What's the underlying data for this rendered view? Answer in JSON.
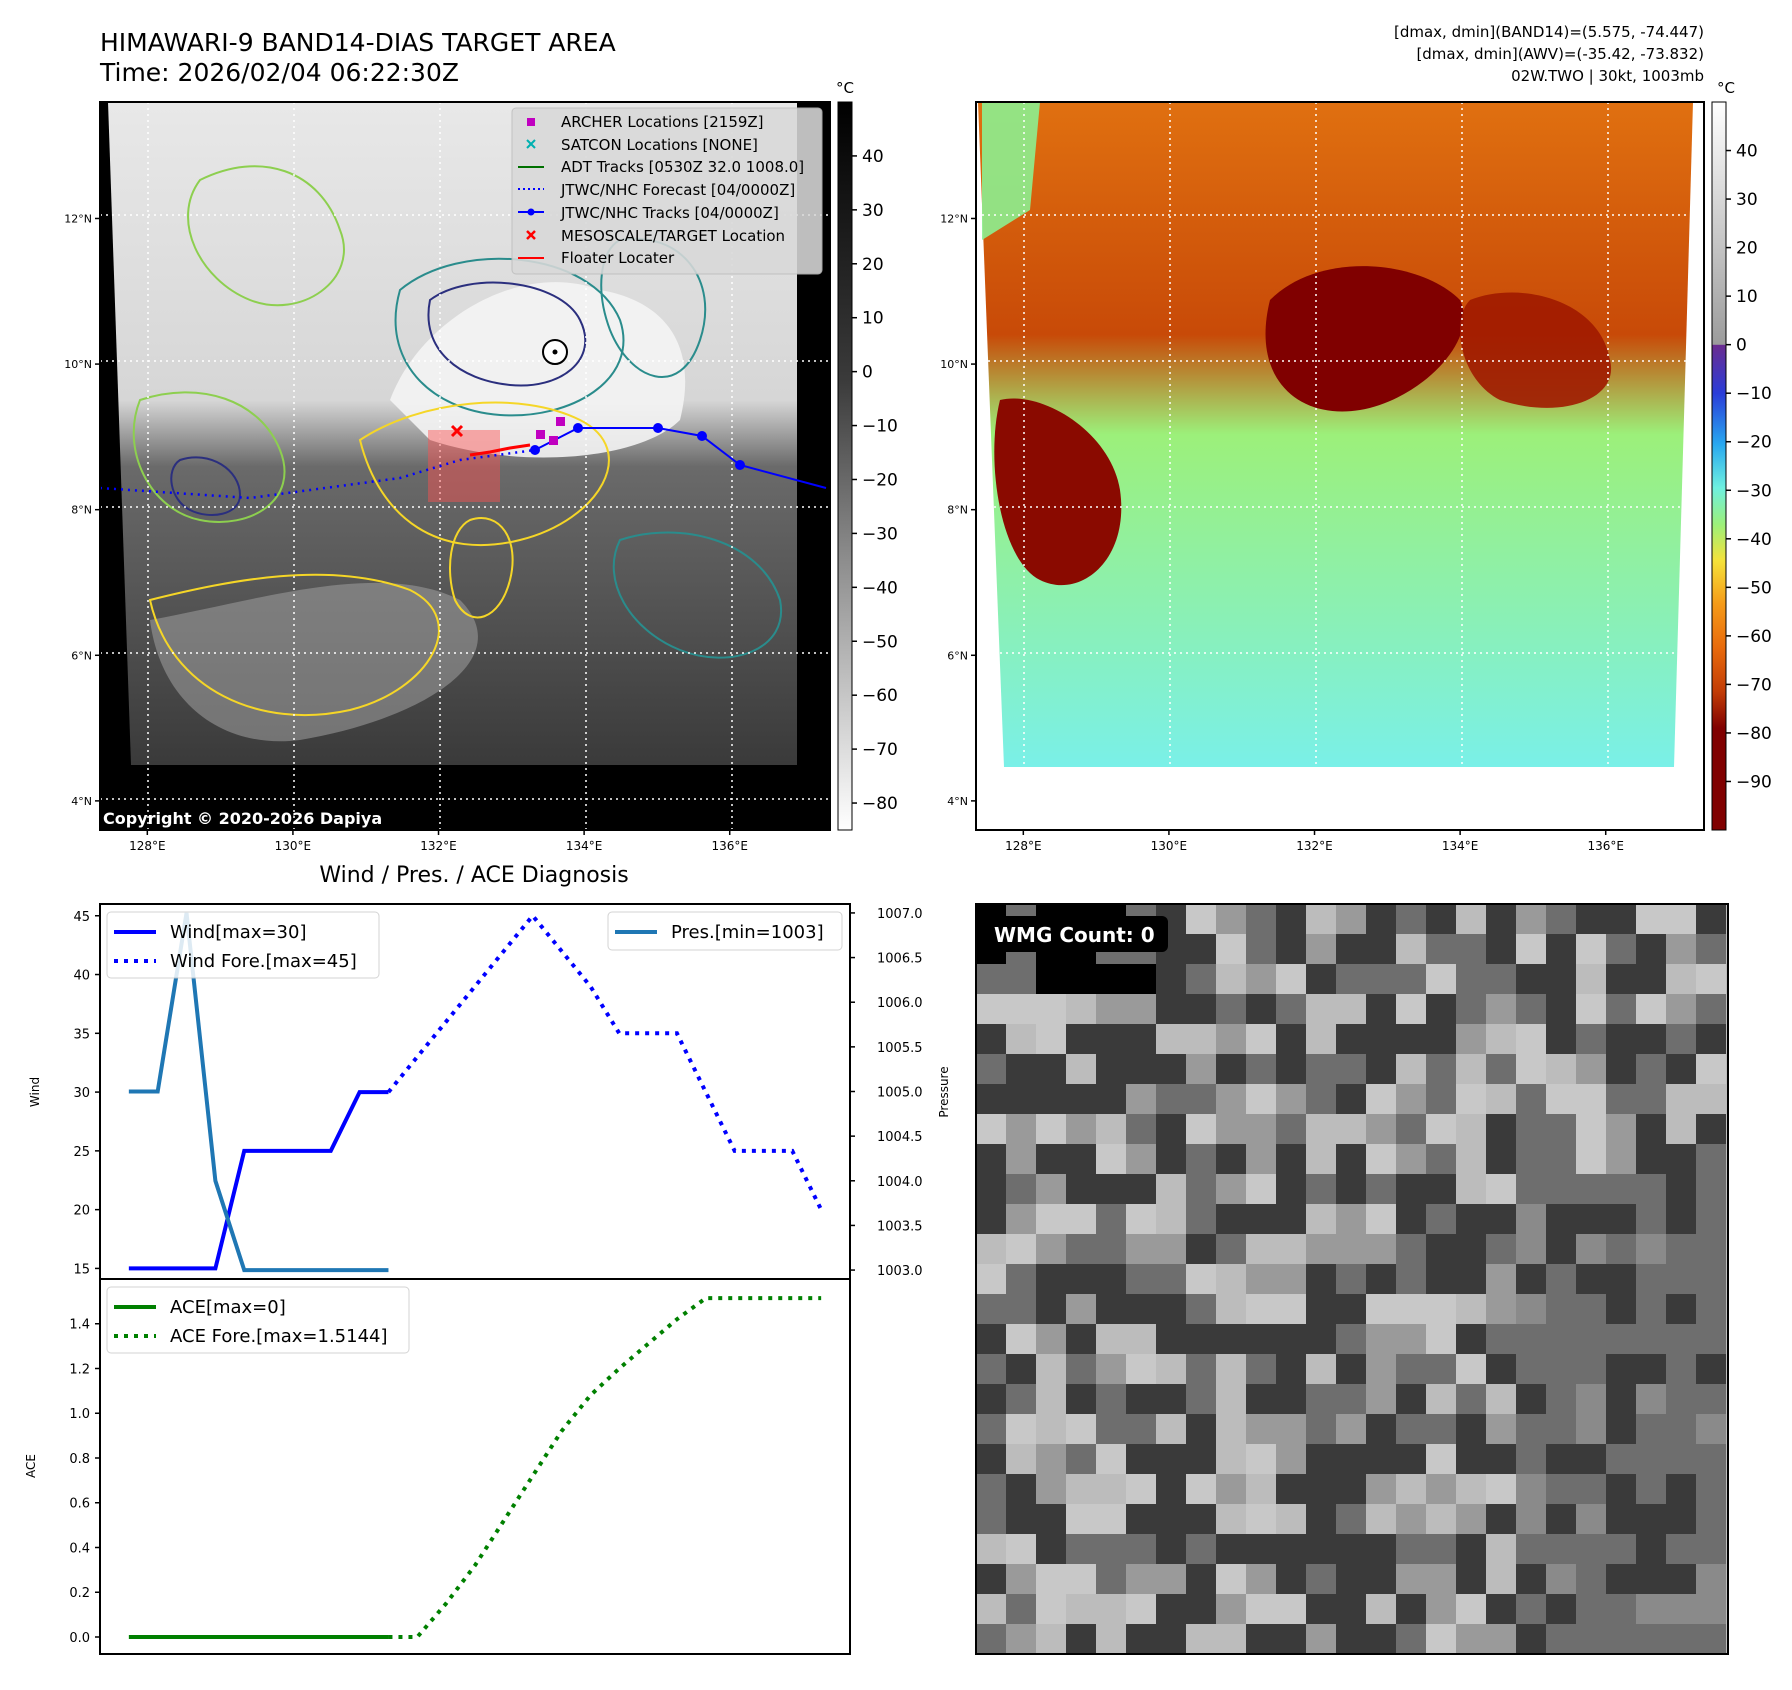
{
  "header": {
    "title_line1": "HIMAWARI-9 BAND14-DIAS TARGET AREA",
    "title_line2": "Time: 2026/02/04 06:22:30Z",
    "info_line1": "[dmax, dmin](BAND14)=(5.575, -74.447)",
    "info_line2": "[dmax, dmin](AWV)=(-35.42, -73.832)",
    "info_line3": "02W.TWO | 30kt, 1003mb"
  },
  "map_axes": {
    "lat_labels": [
      "12°N",
      "10°N",
      "8°N",
      "6°N",
      "4°N"
    ],
    "lat_values": [
      12,
      10,
      8,
      6,
      4
    ],
    "lon_labels": [
      "128°E",
      "130°E",
      "132°E",
      "134°E",
      "136°E"
    ],
    "lon_values": [
      128,
      130,
      132,
      134,
      136
    ],
    "lon_range": [
      127.35,
      137.35
    ],
    "lat_range": [
      3.6,
      13.6
    ]
  },
  "left_colorbar": {
    "unit": "°C",
    "tick_labels": [
      "40",
      "30",
      "20",
      "10",
      "0",
      "−10",
      "−20",
      "−30",
      "−40",
      "−50",
      "−60",
      "−70",
      "−80"
    ],
    "tick_values": [
      40,
      30,
      20,
      10,
      0,
      -10,
      -20,
      -30,
      -40,
      -50,
      -60,
      -70,
      -80
    ],
    "range": [
      -85,
      50
    ]
  },
  "right_colorbar": {
    "unit": "°C",
    "tick_labels": [
      "40",
      "30",
      "20",
      "10",
      "0",
      "−10",
      "−20",
      "−30",
      "−40",
      "−50",
      "−60",
      "−70",
      "−80",
      "−90"
    ],
    "tick_values": [
      40,
      30,
      20,
      10,
      0,
      -10,
      -20,
      -30,
      -40,
      -50,
      -60,
      -70,
      -80,
      -90
    ],
    "range": [
      -100,
      50
    ]
  },
  "legend": {
    "items": [
      {
        "label": "ARCHER Locations [2159Z]",
        "marker": "square",
        "color": "#c000c0"
      },
      {
        "label": "SATCON Locations [NONE]",
        "marker": "x",
        "color": "#00b0b0"
      },
      {
        "label": "ADT Tracks [0530Z 32.0 1008.0]",
        "marker": "line",
        "color": "#007000"
      },
      {
        "label": "JTWC/NHC Forecast [04/0000Z]",
        "marker": "dotted",
        "color": "#0000ff"
      },
      {
        "label": "JTWC/NHC Tracks [04/0000Z]",
        "marker": "line-dot",
        "color": "#0000ff"
      },
      {
        "label": "MESOSCALE/TARGET Location",
        "marker": "x",
        "color": "#ff0000"
      },
      {
        "label": "Floater Locater",
        "marker": "line",
        "color": "#ff0000"
      }
    ]
  },
  "copyright": "Copyright © 2020-2026 Dapiya",
  "wmg": {
    "label": "WMG Count: 0"
  },
  "diag_title": "Wind / Pres. / ACE Diagnosis",
  "chart_data": [
    {
      "type": "line",
      "title": "Wind / Pres. / ACE Diagnosis",
      "ylabel": "Wind",
      "ylabel_right": "Pressure",
      "ylim": [
        14.1,
        46.0
      ],
      "ylim_right": [
        1002.9,
        1007.1
      ],
      "yticks": [
        15,
        20,
        25,
        30,
        35,
        40,
        45
      ],
      "yticks_right": [
        1003.0,
        1003.5,
        1004.0,
        1004.5,
        1005.0,
        1005.5,
        1006.0,
        1006.5,
        1007.0
      ],
      "ytick_labels_right": [
        "1003.0",
        "1003.5",
        "1004.0",
        "1004.5",
        "1005.0",
        "1005.5",
        "1006.0",
        "1006.5",
        "1007.0"
      ],
      "x_index_range": [
        -1,
        25
      ],
      "series": [
        {
          "name": "Wind[max=30]",
          "axis": "left",
          "style": "solid",
          "color": "#0000ff",
          "x": [
            0,
            1,
            2,
            3,
            4,
            5,
            6,
            7,
            8,
            9
          ],
          "values": [
            15,
            15,
            15,
            15,
            25,
            25,
            25,
            25,
            30,
            30
          ]
        },
        {
          "name": "Wind Fore.[max=45]",
          "axis": "left",
          "style": "dotted",
          "color": "#0000ff",
          "x": [
            9,
            10,
            11,
            12,
            13,
            14,
            15,
            16,
            17,
            18,
            19,
            20,
            21,
            22,
            23,
            24
          ],
          "values": [
            30,
            33,
            36,
            39,
            42,
            45,
            42,
            39,
            35,
            35,
            35,
            30,
            25,
            25,
            25,
            20
          ]
        },
        {
          "name": "Pres.[min=1003]",
          "axis": "right",
          "style": "solid",
          "color": "#1f77b4",
          "x": [
            0,
            1,
            2,
            3,
            4,
            5,
            6,
            7,
            8,
            9
          ],
          "values": [
            1005.0,
            1005.0,
            1007.0,
            1004.0,
            1003.0,
            1003.0,
            1003.0,
            1003.0,
            1003.0,
            1003.0
          ]
        }
      ]
    },
    {
      "type": "line",
      "ylabel": "ACE",
      "ylim": [
        -0.076,
        1.6
      ],
      "yticks": [
        0.0,
        0.2,
        0.4,
        0.6,
        0.8,
        1.0,
        1.2,
        1.4
      ],
      "ytick_labels": [
        "0.0",
        "0.2",
        "0.4",
        "0.6",
        "0.8",
        "1.0",
        "1.2",
        "1.4"
      ],
      "x_index_range": [
        -1,
        25
      ],
      "series": [
        {
          "name": "ACE[max=0]",
          "style": "solid",
          "color": "#008000",
          "x": [
            0,
            1,
            2,
            3,
            4,
            5,
            6,
            7,
            8,
            9
          ],
          "values": [
            0,
            0,
            0,
            0,
            0,
            0,
            0,
            0,
            0,
            0
          ]
        },
        {
          "name": "ACE Fore.[max=1.5144]",
          "style": "dotted",
          "color": "#008000",
          "x": [
            9,
            10,
            11,
            12,
            13,
            14,
            15,
            16,
            17,
            18,
            19,
            20,
            21,
            22,
            23,
            24
          ],
          "values": [
            0,
            0,
            0.15,
            0.32,
            0.52,
            0.72,
            0.92,
            1.08,
            1.2,
            1.31,
            1.42,
            1.5144,
            1.5144,
            1.5144,
            1.5144,
            1.5144
          ]
        }
      ]
    }
  ],
  "colors": {
    "contour_yellow": "#f5d627",
    "contour_green": "#8dcf4f",
    "contour_teal": "#2a8c8c",
    "contour_navy": "#2b2f7e",
    "track_blue": "#0000ff",
    "archer_magenta": "#c000c0"
  }
}
